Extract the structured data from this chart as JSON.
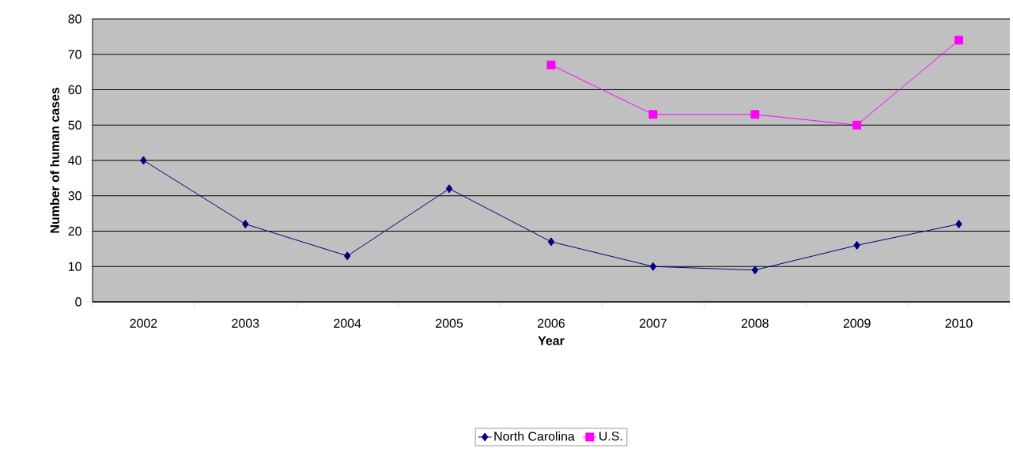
{
  "chart_data": {
    "type": "line",
    "xlabel": "Year",
    "ylabel": "Number of human cases",
    "categories": [
      "2002",
      "2003",
      "2004",
      "2005",
      "2006",
      "2007",
      "2008",
      "2009",
      "2010"
    ],
    "series": [
      {
        "name": "North Carolina",
        "color": "#000080",
        "marker": "diamond",
        "values": [
          40,
          22,
          13,
          32,
          17,
          10,
          9,
          16,
          22
        ]
      },
      {
        "name": "U.S.",
        "color": "#ff00ff",
        "marker": "square",
        "values": [
          null,
          null,
          null,
          null,
          67,
          53,
          53,
          50,
          74
        ]
      }
    ],
    "ylim": [
      0,
      80
    ],
    "yticks": [
      0,
      10,
      20,
      30,
      40,
      50,
      60,
      70,
      80
    ],
    "grid": "y",
    "legend": "bottom",
    "line_style": "solid"
  }
}
